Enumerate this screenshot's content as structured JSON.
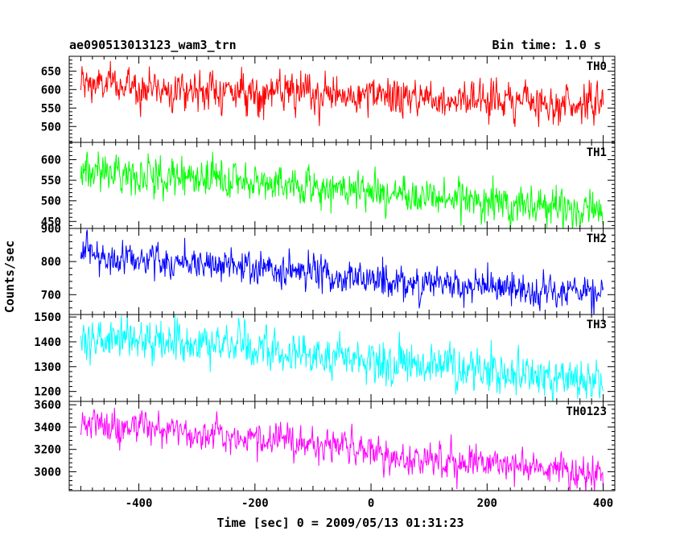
{
  "chart_data": {
    "type": "line",
    "title": "ae090513013123_wam3_trn",
    "bin_time_label": "Bin time: 1.0 s",
    "xlabel": "Time [sec] 0 = 2009/05/13 01:31:23",
    "ylabel": "Counts/sec",
    "xlim": [
      -520,
      420
    ],
    "x_range_data": [
      -500,
      400
    ],
    "x_ticks": [
      -400,
      -200,
      0,
      200,
      400
    ],
    "grid": false,
    "colors": {
      "TH0": "#ff0000",
      "TH1": "#00ff00",
      "TH2": "#0000ff",
      "TH3": "#00ffff",
      "TH0123": "#ff00ff"
    },
    "panels": [
      {
        "name": "TH0",
        "ylim": [
          457,
          690
        ],
        "y_ticks": [
          500,
          550,
          600,
          650
        ],
        "trend": {
          "x": [
            -500,
            -300,
            -100,
            0,
            100,
            200,
            300,
            400
          ],
          "y": [
            615,
            600,
            585,
            580,
            578,
            575,
            565,
            560
          ]
        },
        "noise_sd": 25
      },
      {
        "name": "TH1",
        "ylim": [
          433,
          642
        ],
        "y_ticks": [
          450,
          500,
          550,
          600
        ],
        "trend": {
          "x": [
            -500,
            -300,
            -100,
            0,
            100,
            200,
            300,
            400
          ],
          "y": [
            575,
            555,
            535,
            520,
            510,
            500,
            485,
            478
          ]
        },
        "noise_sd": 22
      },
      {
        "name": "TH2",
        "ylim": [
          640,
          900
        ],
        "y_ticks": [
          700,
          800,
          900
        ],
        "trend": {
          "x": [
            -500,
            -300,
            -100,
            0,
            100,
            200,
            300,
            400
          ],
          "y": [
            822,
            795,
            765,
            745,
            735,
            720,
            705,
            700
          ]
        },
        "noise_sd": 25
      },
      {
        "name": "TH3",
        "ylim": [
          1160,
          1510
        ],
        "y_ticks": [
          1200,
          1300,
          1400,
          1500
        ],
        "trend": {
          "x": [
            -500,
            -300,
            -100,
            0,
            100,
            200,
            300,
            400
          ],
          "y": [
            1415,
            1395,
            1350,
            1320,
            1300,
            1290,
            1260,
            1240
          ]
        },
        "noise_sd": 40
      },
      {
        "name": "TH0123",
        "ylim": [
          2830,
          3630
        ],
        "y_ticks": [
          3000,
          3200,
          3400,
          3600
        ],
        "trend": {
          "x": [
            -500,
            -300,
            -100,
            0,
            100,
            200,
            300,
            400
          ],
          "y": [
            3440,
            3350,
            3250,
            3160,
            3110,
            3080,
            3030,
            2990
          ]
        },
        "noise_sd": 70
      }
    ]
  }
}
